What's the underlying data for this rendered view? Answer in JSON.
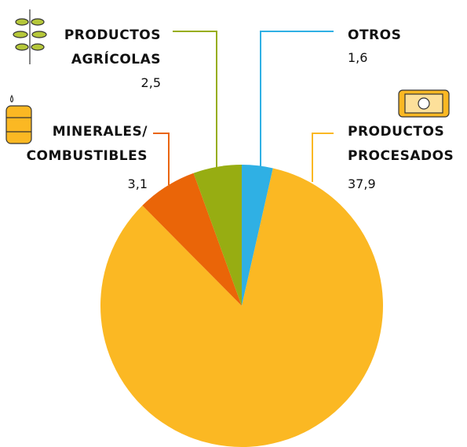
{
  "chart_data": {
    "type": "pie",
    "categories": [
      "OTROS",
      "PRODUCTOS\nPROCESADOS",
      "MINERALES/\nCOMBUSTIBLES",
      "PRODUCTOS\nAGRÍCOLAS"
    ],
    "values": [
      1.6,
      37.9,
      3.1,
      2.5
    ],
    "value_labels": [
      "1,6",
      "37,9",
      "3,1",
      "2,5"
    ],
    "colors": [
      "#2fb0e4",
      "#fbb823",
      "#ea6508",
      "#97ad12"
    ]
  }
}
